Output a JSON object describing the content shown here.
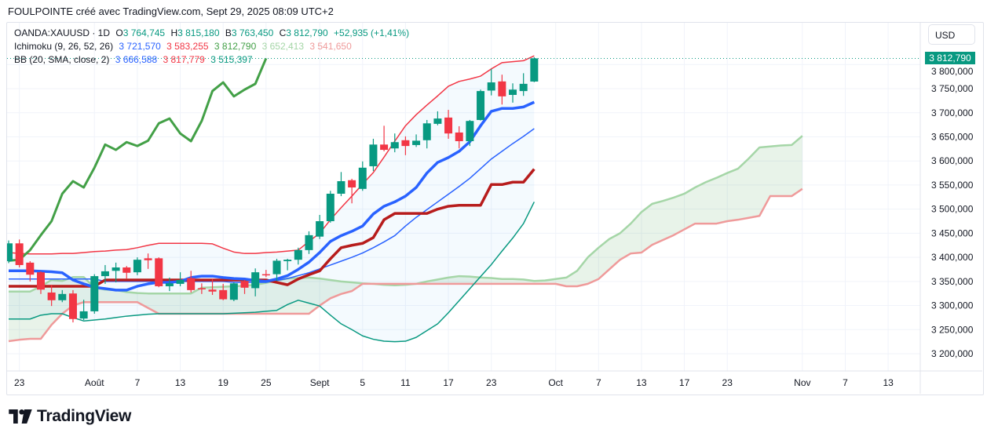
{
  "header": {
    "title": "FOULPOINTE créé avec TradingView.com, Sept 29, 2025 08:09 UTC+2"
  },
  "legend": {
    "symbol": "OANDA:XAUUSD · 1D",
    "o_label": "O",
    "o": "3 764,745",
    "h_label": "H",
    "h": "3 815,180",
    "b_label": "B",
    "b": "3 763,450",
    "c_label": "C",
    "c": "3 812,790",
    "change": "+52,935 (+1,41%)",
    "ichimoku_label": "Ichimoku (9, 26, 52, 26)",
    "ich_values": [
      "3 721,570",
      "3 583,255",
      "3 812,790",
      "3 652,413",
      "3 541,650"
    ],
    "bb_label": "BB (20, SMA, close, 2)",
    "bb_values": [
      "3 666,588",
      "3 817,779",
      "3 515,397"
    ]
  },
  "currency_button": "USD",
  "last_price_label": "3 812,790",
  "logo_text": "TradingView",
  "colors": {
    "up": "#089981",
    "down": "#f23645",
    "tenkan": "#2962ff",
    "kijun": "#b71c1c",
    "chikou": "#43a047",
    "spanA": "#a5d6a7",
    "spanB": "#ef9a9a",
    "bb_upper": "#f23645",
    "bb_basis": "#2962ff",
    "bb_lower": "#089981"
  },
  "chart_data": {
    "type": "candlestick",
    "symbol": "OANDA:XAUUSD",
    "interval": "1D",
    "ylim": [
      3170,
      3880
    ],
    "y_ticks": [
      3200,
      3250,
      3300,
      3350,
      3400,
      3450,
      3500,
      3550,
      3600,
      3650,
      3700,
      3750,
      3800
    ],
    "y_tick_labels": [
      "3 200,000",
      "3 250,000",
      "3 300,000",
      "3 350,000",
      "3 400,000",
      "3 450,000",
      "3 500,000",
      "3 550,000",
      "3 600,000",
      "3 650,000",
      "3 700,000",
      "3 750,000",
      "3 800,000"
    ],
    "x_ticks": [
      {
        "bar": 1,
        "label": "23"
      },
      {
        "bar": 8,
        "label": "Août"
      },
      {
        "bar": 12,
        "label": "7"
      },
      {
        "bar": 16,
        "label": "13"
      },
      {
        "bar": 20,
        "label": "19"
      },
      {
        "bar": 24,
        "label": "25"
      },
      {
        "bar": 29,
        "label": "Sept"
      },
      {
        "bar": 33,
        "label": "5"
      },
      {
        "bar": 37,
        "label": "11"
      },
      {
        "bar": 41,
        "label": "17"
      },
      {
        "bar": 45,
        "label": "23"
      },
      {
        "bar": 51,
        "label": "Oct"
      },
      {
        "bar": 55,
        "label": "7"
      },
      {
        "bar": 59,
        "label": "13"
      },
      {
        "bar": 63,
        "label": "17"
      },
      {
        "bar": 67,
        "label": "23"
      },
      {
        "bar": 74,
        "label": "Nov"
      },
      {
        "bar": 78,
        "label": "7"
      },
      {
        "bar": 82,
        "label": "13"
      }
    ],
    "candles": [
      [
        3392,
        3435,
        3388,
        3429
      ],
      [
        3429,
        3437,
        3379,
        3384
      ],
      [
        3389,
        3392,
        3350,
        3364
      ],
      [
        3369,
        3371,
        3324,
        3333
      ],
      [
        3327,
        3343,
        3299,
        3311
      ],
      [
        3311,
        3332,
        3307,
        3324
      ],
      [
        3325,
        3332,
        3265,
        3272
      ],
      [
        3273,
        3312,
        3270,
        3288
      ],
      [
        3288,
        3365,
        3283,
        3361
      ],
      [
        3361,
        3384,
        3345,
        3371
      ],
      [
        3372,
        3389,
        3348,
        3379
      ],
      [
        3379,
        3382,
        3356,
        3368
      ],
      [
        3369,
        3400,
        3363,
        3395
      ],
      [
        3398,
        3408,
        3376,
        3394
      ],
      [
        3398,
        3400,
        3338,
        3340
      ],
      [
        3340,
        3358,
        3330,
        3346
      ],
      [
        3345,
        3369,
        3340,
        3353
      ],
      [
        3357,
        3372,
        3327,
        3332
      ],
      [
        3336,
        3346,
        3324,
        3334
      ],
      [
        3333,
        3356,
        3322,
        3329
      ],
      [
        3332,
        3345,
        3311,
        3313
      ],
      [
        3312,
        3348,
        3309,
        3346
      ],
      [
        3350,
        3353,
        3324,
        3337
      ],
      [
        3336,
        3377,
        3319,
        3369
      ],
      [
        3365,
        3374,
        3359,
        3363
      ],
      [
        3365,
        3397,
        3351,
        3393
      ],
      [
        3392,
        3397,
        3373,
        3395
      ],
      [
        3395,
        3420,
        3385,
        3415
      ],
      [
        3415,
        3454,
        3407,
        3446
      ],
      [
        3443,
        3488,
        3438,
        3475
      ],
      [
        3475,
        3538,
        3472,
        3532
      ],
      [
        3532,
        3577,
        3527,
        3558
      ],
      [
        3560,
        3563,
        3512,
        3545
      ],
      [
        3542,
        3599,
        3538,
        3586
      ],
      [
        3589,
        3646,
        3579,
        3634
      ],
      [
        3634,
        3673,
        3620,
        3623
      ],
      [
        3626,
        3657,
        3618,
        3639
      ],
      [
        3643,
        3651,
        3612,
        3631
      ],
      [
        3633,
        3655,
        3629,
        3642
      ],
      [
        3643,
        3685,
        3626,
        3678
      ],
      [
        3677,
        3703,
        3674,
        3688
      ],
      [
        3690,
        3706,
        3646,
        3657
      ],
      [
        3659,
        3672,
        3626,
        3641
      ],
      [
        3641,
        3685,
        3631,
        3683
      ],
      [
        3685,
        3748,
        3684,
        3745
      ],
      [
        3746,
        3791,
        3736,
        3763
      ],
      [
        3765,
        3779,
        3717,
        3734
      ],
      [
        3737,
        3761,
        3721,
        3748
      ],
      [
        3745,
        3782,
        3735,
        3760
      ],
      [
        3764.745,
        3815.18,
        3763.45,
        3812.79
      ]
    ],
    "candle_format": "[open, high, low, close]",
    "bb_upper": [
      3410,
      3408,
      3407,
      3407,
      3407,
      3408,
      3408,
      3410,
      3412,
      3413,
      3415,
      3416,
      3420,
      3425,
      3429,
      3429,
      3429,
      3429,
      3429,
      3428,
      3419,
      3411,
      3408,
      3408,
      3410,
      3411,
      3413,
      3415,
      3433,
      3450,
      3478,
      3503,
      3527,
      3552,
      3576,
      3608,
      3641,
      3673,
      3696,
      3716,
      3735,
      3755,
      3765,
      3770,
      3776,
      3791,
      3804,
      3806,
      3808,
      3818
    ],
    "bb_basis": [
      3355,
      3355,
      3355,
      3355,
      3355,
      3355,
      3355,
      3355,
      3355,
      3350,
      3350,
      3350,
      3350,
      3350,
      3350,
      3350,
      3350,
      3350,
      3350,
      3350,
      3350,
      3348,
      3348,
      3348,
      3348,
      3352,
      3356,
      3362,
      3368,
      3376,
      3384,
      3392,
      3400,
      3409,
      3420,
      3432,
      3445,
      3465,
      3483,
      3499,
      3515,
      3531,
      3547,
      3564,
      3584,
      3604,
      3620,
      3636,
      3651,
      3667
    ],
    "bb_lower": [
      3272,
      3272,
      3272,
      3280,
      3283,
      3283,
      3275,
      3268,
      3270,
      3272,
      3275,
      3278,
      3280,
      3282,
      3283,
      3283,
      3283,
      3283,
      3283,
      3283,
      3283,
      3284,
      3285,
      3286,
      3288,
      3290,
      3302,
      3311,
      3305,
      3299,
      3280,
      3262,
      3250,
      3237,
      3230,
      3226,
      3225,
      3226,
      3234,
      3248,
      3262,
      3285,
      3310,
      3335,
      3360,
      3385,
      3413,
      3440,
      3470,
      3515
    ],
    "tenkan": [
      3372,
      3372,
      3372,
      3371,
      3370,
      3368,
      3353,
      3345,
      3338,
      3335,
      3332,
      3332,
      3340,
      3345,
      3348,
      3348,
      3350,
      3358,
      3361,
      3361,
      3358,
      3356,
      3355,
      3352,
      3350,
      3355,
      3362,
      3375,
      3390,
      3410,
      3433,
      3445,
      3454,
      3465,
      3490,
      3506,
      3515,
      3527,
      3545,
      3575,
      3597,
      3607,
      3620,
      3640,
      3673,
      3703,
      3709,
      3709,
      3712,
      3722
    ],
    "kijun": [
      3340,
      3340,
      3340,
      3340,
      3340,
      3340,
      3340,
      3340,
      3340,
      3353,
      3353,
      3353,
      3353,
      3353,
      3353,
      3353,
      3353,
      3353,
      3353,
      3353,
      3353,
      3353,
      3353,
      3353,
      3353,
      3348,
      3343,
      3355,
      3364,
      3372,
      3397,
      3420,
      3425,
      3429,
      3441,
      3478,
      3491,
      3491,
      3491,
      3491,
      3500,
      3506,
      3508,
      3508,
      3508,
      3551,
      3551,
      3556,
      3556,
      3583
    ],
    "chikou_offset_bars": 25,
    "span_a": [
      3329,
      3329,
      3329,
      3340,
      3353,
      3351,
      3359,
      3359,
      3337,
      3333,
      3332,
      3328,
      3326,
      3325,
      3325,
      3325,
      3325,
      3325,
      3337,
      3338,
      3339,
      3340,
      3341,
      3343,
      3347,
      3352,
      3356,
      3357,
      3358,
      3356,
      3353,
      3350,
      3348,
      3346,
      3345,
      3343,
      3342,
      3343,
      3345,
      3350,
      3354,
      3358,
      3361,
      3360,
      3358,
      3357,
      3355,
      3355,
      3354,
      3351,
      3352,
      3355,
      3358,
      3372,
      3400,
      3420,
      3438,
      3450,
      3470,
      3494,
      3511,
      3517,
      3524,
      3532,
      3545,
      3556,
      3565,
      3575,
      3584,
      3605,
      3628,
      3630,
      3632,
      3633,
      3652
    ],
    "span_b": [
      3226,
      3229,
      3231,
      3231,
      3260,
      3283,
      3300,
      3307,
      3307,
      3307,
      3307,
      3307,
      3307,
      3295,
      3283,
      3283,
      3283,
      3283,
      3283,
      3283,
      3283,
      3283,
      3283,
      3283,
      3283,
      3283,
      3283,
      3283,
      3283,
      3300,
      3315,
      3324,
      3330,
      3345,
      3345,
      3345,
      3345,
      3345,
      3345,
      3345,
      3345,
      3345,
      3345,
      3345,
      3345,
      3345,
      3345,
      3345,
      3345,
      3345,
      3345,
      3345,
      3340,
      3340,
      3345,
      3355,
      3375,
      3395,
      3408,
      3410,
      3426,
      3436,
      3446,
      3458,
      3470,
      3470,
      3470,
      3475,
      3478,
      3482,
      3486,
      3527,
      3527,
      3527,
      3542
    ]
  }
}
